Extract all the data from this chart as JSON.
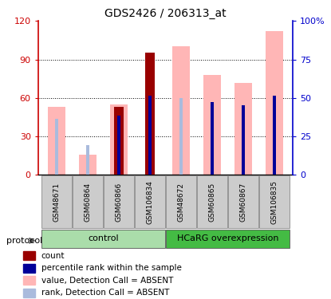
{
  "title": "GDS2426 / 206313_at",
  "samples": [
    "GSM48671",
    "GSM60864",
    "GSM60866",
    "GSM106834",
    "GSM48672",
    "GSM60865",
    "GSM60867",
    "GSM106835"
  ],
  "value_absent": [
    53,
    16,
    55,
    null,
    100,
    78,
    72,
    112
  ],
  "rank_absent": [
    44,
    23,
    null,
    null,
    60,
    null,
    null,
    null
  ],
  "count_red": [
    null,
    null,
    53,
    95,
    null,
    null,
    null,
    null
  ],
  "percentile_blue": [
    null,
    null,
    46,
    62,
    null,
    57,
    54,
    62
  ],
  "ylim": [
    0,
    120
  ],
  "y2lim": [
    0,
    100
  ],
  "yticks_left": [
    0,
    30,
    60,
    90,
    120
  ],
  "yticks_right": [
    0,
    25,
    50,
    75,
    100
  ],
  "ytick_labels_left": [
    "0",
    "30",
    "60",
    "90",
    "120"
  ],
  "ytick_labels_right": [
    "0",
    "25",
    "50",
    "75",
    "100%"
  ],
  "color_count": "#990000",
  "color_percentile": "#000099",
  "color_value_absent": "#FFB6B6",
  "color_rank_absent": "#AABBDD",
  "legend_items": [
    {
      "label": "count",
      "color": "#990000"
    },
    {
      "label": "percentile rank within the sample",
      "color": "#000099"
    },
    {
      "label": "value, Detection Call = ABSENT",
      "color": "#FFB6B6"
    },
    {
      "label": "rank, Detection Call = ABSENT",
      "color": "#AABBDD"
    }
  ],
  "groups_info": [
    {
      "label": "control",
      "start": 0,
      "end": 3,
      "color": "#AADDAA"
    },
    {
      "label": "HCaRG overexpression",
      "start": 4,
      "end": 7,
      "color": "#44BB44"
    }
  ]
}
